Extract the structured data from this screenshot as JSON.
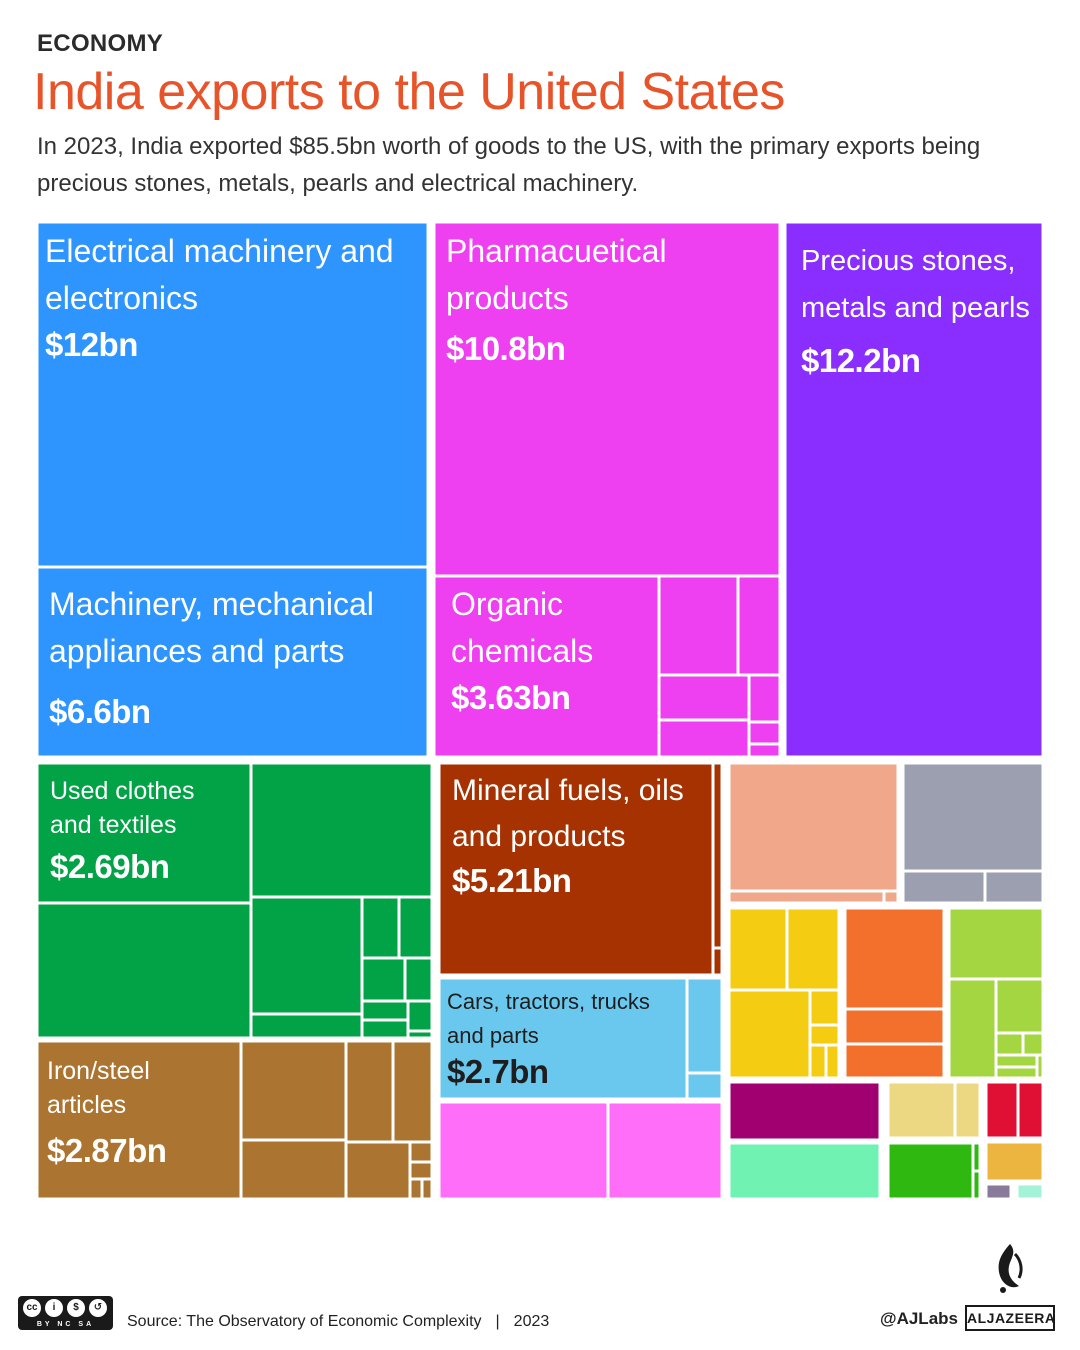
{
  "header": {
    "kicker": "ECONOMY",
    "title": "India exports to the United States",
    "subtitle": "In 2023, India exported $85.5bn worth of goods to the US, with the primary exports being precious stones, metals, pearls and electrical machinery."
  },
  "chart_data": {
    "type": "treemap",
    "title": "India exports to the United States",
    "total": "$85.5bn",
    "year": "2023",
    "labeled_categories": [
      {
        "name": "Electrical machinery and electronics",
        "value_label": "$12bn",
        "value_bn": 12,
        "color": "#2e95ff"
      },
      {
        "name": "Pharmacuetical products",
        "value_label": "$10.8bn",
        "value_bn": 10.8,
        "color": "#ee3ff0"
      },
      {
        "name": "Precious stones, metals and pearls",
        "value_label": "$12.2bn",
        "value_bn": 12.2,
        "color": "#8a2eff"
      },
      {
        "name": "Machinery, mechanical appliances and parts",
        "value_label": "$6.6bn",
        "value_bn": 6.6,
        "color": "#2e95ff"
      },
      {
        "name": "Organic chemicals",
        "value_label": "$3.63bn",
        "value_bn": 3.63,
        "color": "#ee3ff0"
      },
      {
        "name": "Used clothes and textiles",
        "value_label": "$2.69bn",
        "value_bn": 2.69,
        "color": "#02a246"
      },
      {
        "name": "Mineral fuels, oils and products",
        "value_label": "$5.21bn",
        "value_bn": 5.21,
        "color": "#a53200"
      },
      {
        "name": "Cars, tractors, trucks and parts",
        "value_label": "$2.7bn",
        "value_bn": 2.7,
        "color": "#6ac7ee"
      },
      {
        "name": "Iron/steel articles",
        "value_label": "$2.87bn",
        "value_bn": 2.87,
        "color": "#ab7430"
      }
    ],
    "colors": {
      "blue": "#2e95ff",
      "magenta": "#ee3ff0",
      "purple": "#8a2eff",
      "green": "#02a246",
      "rust": "#a53200",
      "sky": "#6ac7ee",
      "brown": "#ab7430",
      "pink": "#ff6ef9",
      "salmon": "#f1a88a",
      "gray": "#9b9fb0",
      "yellow": "#f4cc12",
      "orange": "#f26f2c",
      "lime": "#a3d640",
      "plum": "#a00070",
      "mint": "#6ff2b2",
      "khaki": "#ecd882",
      "lightgreen": "#2fb80f",
      "crimson": "#e01035",
      "mustard": "#ebb540",
      "mauve": "#8a7a9a",
      "aqua": "#a4f2d8"
    }
  },
  "footer": {
    "source": "Source: The Observatory of Economic Complexity",
    "separator": "|",
    "year": "2023",
    "handle": "@AJLabs",
    "brand": "ALJAZEERA",
    "license": "BY  NC  SA"
  }
}
